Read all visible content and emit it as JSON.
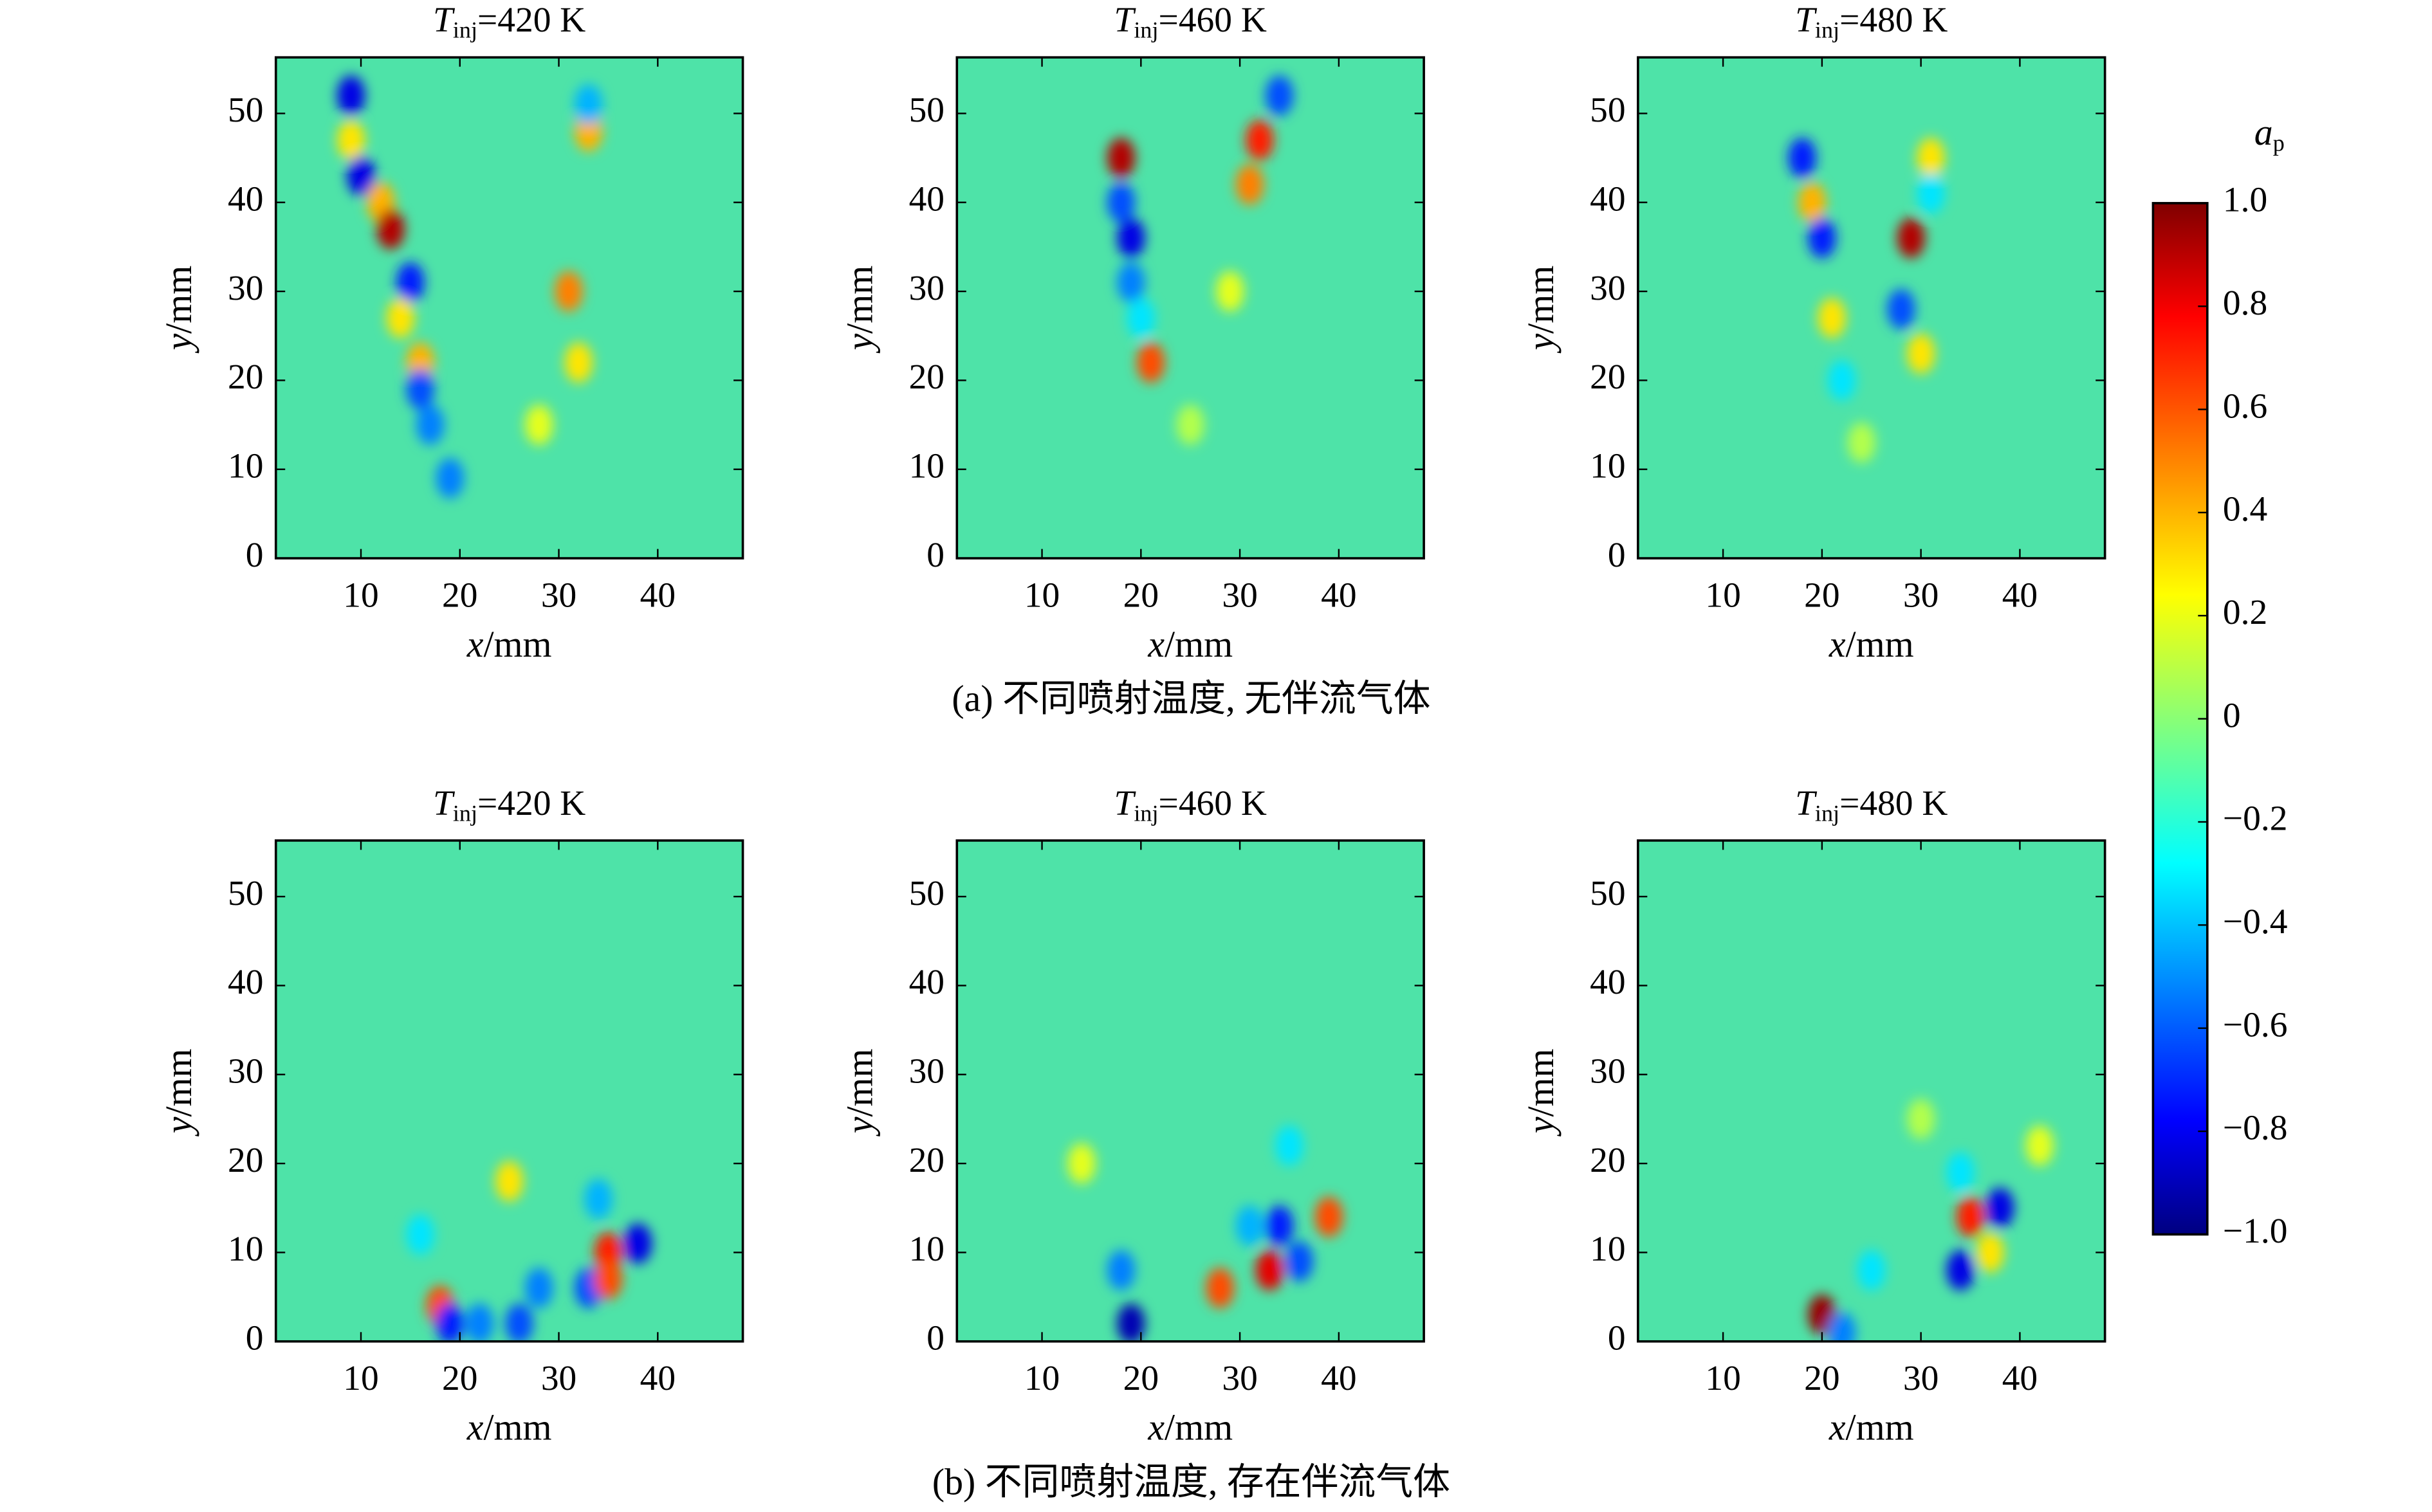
{
  "chart_data": [
    {
      "type": "heatmap",
      "title": {
        "main": "T",
        "sub": "inj",
        "rest": "=420 K"
      },
      "xlabel": {
        "var": "x",
        "unit": "/mm"
      },
      "ylabel": {
        "var": "y",
        "unit": "/mm"
      },
      "xlim": [
        1.4,
        48.6
      ],
      "ylim": [
        0,
        56.3
      ],
      "xticks": [
        10,
        20,
        30,
        40
      ],
      "yticks": [
        0,
        10,
        20,
        30,
        40,
        50
      ],
      "x": [
        9,
        9,
        10,
        12,
        13,
        15,
        14,
        16,
        16,
        17,
        19,
        31,
        33,
        33,
        32,
        28
      ],
      "y": [
        52,
        47,
        43,
        40,
        37,
        31,
        27,
        22,
        19,
        15,
        9,
        30,
        48,
        51,
        22,
        15
      ],
      "values": [
        -0.8,
        0.3,
        -0.8,
        0.4,
        0.9,
        -0.7,
        0.3,
        0.4,
        -0.6,
        -0.5,
        -0.5,
        0.5,
        0.4,
        -0.4,
        0.3,
        0.2
      ]
    },
    {
      "type": "heatmap",
      "title": {
        "main": "T",
        "sub": "inj",
        "rest": "=460 K"
      },
      "xlabel": {
        "var": "x",
        "unit": "/mm"
      },
      "ylabel": {
        "var": "y",
        "unit": "/mm"
      },
      "xlim": [
        1.4,
        48.6
      ],
      "ylim": [
        0,
        56.3
      ],
      "xticks": [
        10,
        20,
        30,
        40
      ],
      "yticks": [
        0,
        10,
        20,
        30,
        40,
        50
      ],
      "x": [
        18,
        18,
        19,
        19,
        20,
        21,
        32,
        31,
        34,
        29,
        25
      ],
      "y": [
        45,
        40,
        36,
        31,
        27,
        22,
        47,
        42,
        52,
        30,
        15
      ],
      "values": [
        0.9,
        -0.6,
        -0.8,
        -0.5,
        -0.3,
        0.6,
        0.7,
        0.5,
        -0.6,
        0.2,
        0.1
      ]
    },
    {
      "type": "heatmap",
      "title": {
        "main": "T",
        "sub": "inj",
        "rest": "=480 K"
      },
      "xlabel": {
        "var": "x",
        "unit": "/mm"
      },
      "ylabel": {
        "var": "y",
        "unit": "/mm"
      },
      "xlim": [
        1.4,
        48.6
      ],
      "ylim": [
        0,
        56.3
      ],
      "xticks": [
        10,
        20,
        30,
        40
      ],
      "yticks": [
        0,
        10,
        20,
        30,
        40,
        50
      ],
      "x": [
        18,
        19,
        20,
        21,
        22,
        29,
        28,
        30,
        31,
        31,
        24
      ],
      "y": [
        45,
        40,
        36,
        27,
        20,
        36,
        28,
        23,
        45,
        41,
        13
      ],
      "values": [
        -0.7,
        0.4,
        -0.7,
        0.3,
        -0.3,
        0.9,
        -0.6,
        0.3,
        0.3,
        -0.3,
        0.1
      ]
    },
    {
      "type": "heatmap",
      "title": {
        "main": "T",
        "sub": "inj",
        "rest": "=420 K"
      },
      "xlabel": {
        "var": "x",
        "unit": "/mm"
      },
      "ylabel": {
        "var": "y",
        "unit": "/mm"
      },
      "xlim": [
        1.4,
        48.6
      ],
      "ylim": [
        0,
        56.3
      ],
      "xticks": [
        10,
        20,
        30,
        40
      ],
      "yticks": [
        0,
        10,
        20,
        30,
        40,
        50
      ],
      "x": [
        18,
        19,
        22,
        26,
        28,
        33,
        35,
        35,
        38,
        34,
        16,
        25
      ],
      "y": [
        4,
        2,
        2,
        2,
        6,
        6,
        10,
        7,
        11,
        16,
        12,
        18
      ],
      "values": [
        0.6,
        -0.7,
        -0.5,
        -0.6,
        -0.5,
        -0.6,
        0.7,
        0.6,
        -0.8,
        -0.4,
        -0.3,
        0.3
      ]
    },
    {
      "type": "heatmap",
      "title": {
        "main": "T",
        "sub": "inj",
        "rest": "=460 K"
      },
      "xlabel": {
        "var": "x",
        "unit": "/mm"
      },
      "ylabel": {
        "var": "y",
        "unit": "/mm"
      },
      "xlim": [
        1.4,
        48.6
      ],
      "ylim": [
        0,
        56.3
      ],
      "xticks": [
        10,
        20,
        30,
        40
      ],
      "yticks": [
        0,
        10,
        20,
        30,
        40,
        50
      ],
      "x": [
        19,
        18,
        28,
        33,
        34,
        36,
        39,
        31,
        35,
        14
      ],
      "y": [
        2,
        8,
        6,
        8,
        13,
        9,
        14,
        13,
        22,
        20
      ],
      "values": [
        -0.9,
        -0.5,
        0.6,
        0.8,
        -0.7,
        -0.6,
        0.6,
        -0.4,
        -0.3,
        0.2
      ]
    },
    {
      "type": "heatmap",
      "title": {
        "main": "T",
        "sub": "inj",
        "rest": "=480 K"
      },
      "xlabel": {
        "var": "x",
        "unit": "/mm"
      },
      "ylabel": {
        "var": "y",
        "unit": "/mm"
      },
      "xlim": [
        1.4,
        48.6
      ],
      "ylim": [
        0,
        56.3
      ],
      "xticks": [
        10,
        20,
        30,
        40
      ],
      "yticks": [
        0,
        10,
        20,
        30,
        40,
        50
      ],
      "x": [
        20,
        22,
        34,
        35,
        38,
        37,
        25,
        30,
        34,
        42
      ],
      "y": [
        3,
        1,
        8,
        14,
        15,
        10,
        8,
        25,
        19,
        22
      ],
      "values": [
        0.95,
        -0.5,
        -0.8,
        0.7,
        -0.8,
        0.3,
        -0.3,
        0.1,
        -0.3,
        0.2
      ]
    }
  ],
  "colorbar": {
    "label": {
      "var": "a",
      "sub": "p"
    },
    "colormap": "jet",
    "lim": [
      -1,
      1
    ],
    "ticks": [
      {
        "value": 1.0,
        "label": "1.0"
      },
      {
        "value": 0.8,
        "label": "0.8"
      },
      {
        "value": 0.6,
        "label": "0.6"
      },
      {
        "value": 0.4,
        "label": "0.4"
      },
      {
        "value": 0.2,
        "label": "0.2"
      },
      0,
      {
        "value": -0.2,
        "label": "−0.2"
      },
      {
        "value": -0.4,
        "label": "−0.4"
      },
      {
        "value": -0.6,
        "label": "−0.6"
      },
      {
        "value": -0.8,
        "label": "−0.8"
      },
      {
        "value": -1.0,
        "label": "−1.0"
      }
    ]
  },
  "captions": [
    "(a) 不同喷射温度, 无伴流气体",
    "(b) 不同喷射温度, 存在伴流气体"
  ]
}
